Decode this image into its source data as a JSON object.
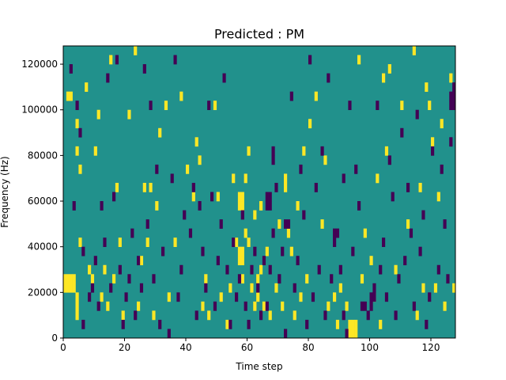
{
  "chart_data": {
    "type": "heatmap",
    "title": "Predicted : PM",
    "xlabel": "Time step",
    "ylabel": "Frequency (Hz)",
    "xlim": [
      0,
      128
    ],
    "ylim": [
      0,
      128000
    ],
    "x_ticks": [
      {
        "value": 0,
        "label": "0"
      },
      {
        "value": 20,
        "label": "20"
      },
      {
        "value": 40,
        "label": "40"
      },
      {
        "value": 60,
        "label": "60"
      },
      {
        "value": 80,
        "label": "80"
      },
      {
        "value": 100,
        "label": "100"
      },
      {
        "value": 120,
        "label": "120"
      }
    ],
    "y_ticks": [
      {
        "value": 0,
        "label": "0"
      },
      {
        "value": 20000,
        "label": "20000"
      },
      {
        "value": 40000,
        "label": "40000"
      },
      {
        "value": 60000,
        "label": "60000"
      },
      {
        "value": 80000,
        "label": "80000"
      },
      {
        "value": 100000,
        "label": "100000"
      },
      {
        "value": 120000,
        "label": "120000"
      }
    ],
    "grid": false,
    "colors": {
      "background": "#21918c",
      "high": "#fde725",
      "low": "#440154"
    },
    "value_levels": {
      "background": 0,
      "high": 1,
      "low": -1
    },
    "cell_size": {
      "time_steps": 1,
      "frequency_hz": 4000
    },
    "cells_high": [
      [
        0,
        20000
      ],
      [
        1,
        20000
      ],
      [
        2,
        20000
      ],
      [
        3,
        20000
      ],
      [
        0,
        24000
      ],
      [
        1,
        24000
      ],
      [
        2,
        24000
      ],
      [
        3,
        24000
      ],
      [
        1,
        104000
      ],
      [
        2,
        104000
      ],
      [
        4,
        16000
      ],
      [
        4,
        12000
      ],
      [
        4,
        8000
      ],
      [
        4,
        80000
      ],
      [
        4,
        92000
      ],
      [
        5,
        72000
      ],
      [
        5,
        40000
      ],
      [
        7,
        108000
      ],
      [
        8,
        28000
      ],
      [
        9,
        24000
      ],
      [
        10,
        80000
      ],
      [
        11,
        96000
      ],
      [
        12,
        16000
      ],
      [
        13,
        28000
      ],
      [
        14,
        12000
      ],
      [
        15,
        120000
      ],
      [
        16,
        24000
      ],
      [
        17,
        64000
      ],
      [
        18,
        40000
      ],
      [
        19,
        8000
      ],
      [
        21,
        96000
      ],
      [
        23,
        124000
      ],
      [
        24,
        12000
      ],
      [
        25,
        32000
      ],
      [
        26,
        64000
      ],
      [
        27,
        40000
      ],
      [
        28,
        64000
      ],
      [
        29,
        8000
      ],
      [
        30,
        56000
      ],
      [
        31,
        88000
      ],
      [
        33,
        100000
      ],
      [
        34,
        16000
      ],
      [
        36,
        40000
      ],
      [
        38,
        104000
      ],
      [
        40,
        72000
      ],
      [
        42,
        60000
      ],
      [
        43,
        84000
      ],
      [
        44,
        76000
      ],
      [
        45,
        12000
      ],
      [
        46,
        24000
      ],
      [
        47,
        8000
      ],
      [
        49,
        100000
      ],
      [
        50,
        60000
      ],
      [
        51,
        16000
      ],
      [
        53,
        4000
      ],
      [
        54,
        20000
      ],
      [
        55,
        68000
      ],
      [
        56,
        40000
      ],
      [
        57,
        32000
      ],
      [
        57,
        36000
      ],
      [
        57,
        56000
      ],
      [
        57,
        60000
      ],
      [
        58,
        32000
      ],
      [
        58,
        36000
      ],
      [
        58,
        56000
      ],
      [
        58,
        60000
      ],
      [
        58,
        24000
      ],
      [
        59,
        44000
      ],
      [
        59,
        68000
      ],
      [
        60,
        80000
      ],
      [
        60,
        40000
      ],
      [
        61,
        20000
      ],
      [
        62,
        52000
      ],
      [
        62,
        12000
      ],
      [
        63,
        16000
      ],
      [
        63,
        24000
      ],
      [
        64,
        56000
      ],
      [
        64,
        28000
      ],
      [
        65,
        12000
      ],
      [
        66,
        36000
      ],
      [
        67,
        8000
      ],
      [
        69,
        20000
      ],
      [
        70,
        48000
      ],
      [
        71,
        12000
      ],
      [
        72,
        64000
      ],
      [
        72,
        68000
      ],
      [
        73,
        44000
      ],
      [
        74,
        36000
      ],
      [
        75,
        8000
      ],
      [
        76,
        56000
      ],
      [
        77,
        16000
      ],
      [
        78,
        80000
      ],
      [
        79,
        24000
      ],
      [
        80,
        92000
      ],
      [
        82,
        104000
      ],
      [
        84,
        48000
      ],
      [
        85,
        76000
      ],
      [
        86,
        12000
      ],
      [
        88,
        16000
      ],
      [
        89,
        4000
      ],
      [
        90,
        20000
      ],
      [
        92,
        12000
      ],
      [
        93,
        0
      ],
      [
        93,
        4000
      ],
      [
        94,
        0
      ],
      [
        94,
        4000
      ],
      [
        95,
        0
      ],
      [
        95,
        4000
      ],
      [
        96,
        120000
      ],
      [
        97,
        24000
      ],
      [
        98,
        44000
      ],
      [
        100,
        32000
      ],
      [
        101,
        16000
      ],
      [
        102,
        68000
      ],
      [
        103,
        4000
      ],
      [
        104,
        112000
      ],
      [
        105,
        80000
      ],
      [
        106,
        116000
      ],
      [
        108,
        28000
      ],
      [
        110,
        100000
      ],
      [
        112,
        48000
      ],
      [
        114,
        124000
      ],
      [
        115,
        8000
      ],
      [
        116,
        64000
      ],
      [
        117,
        20000
      ],
      [
        118,
        108000
      ],
      [
        119,
        100000
      ],
      [
        120,
        84000
      ],
      [
        121,
        20000
      ],
      [
        122,
        60000
      ],
      [
        123,
        92000
      ],
      [
        124,
        12000
      ],
      [
        126,
        112000
      ],
      [
        127,
        20000
      ]
    ],
    "cells_low": [
      [
        2,
        116000
      ],
      [
        3,
        56000
      ],
      [
        4,
        100000
      ],
      [
        5,
        88000
      ],
      [
        6,
        36000
      ],
      [
        6,
        4000
      ],
      [
        8,
        16000
      ],
      [
        9,
        20000
      ],
      [
        10,
        32000
      ],
      [
        11,
        12000
      ],
      [
        12,
        56000
      ],
      [
        13,
        40000
      ],
      [
        14,
        112000
      ],
      [
        15,
        20000
      ],
      [
        16,
        60000
      ],
      [
        17,
        120000
      ],
      [
        18,
        28000
      ],
      [
        19,
        4000
      ],
      [
        20,
        16000
      ],
      [
        21,
        24000
      ],
      [
        22,
        44000
      ],
      [
        23,
        8000
      ],
      [
        24,
        32000
      ],
      [
        25,
        20000
      ],
      [
        26,
        116000
      ],
      [
        27,
        48000
      ],
      [
        28,
        100000
      ],
      [
        29,
        24000
      ],
      [
        30,
        72000
      ],
      [
        31,
        4000
      ],
      [
        32,
        36000
      ],
      [
        34,
        0
      ],
      [
        35,
        68000
      ],
      [
        36,
        120000
      ],
      [
        37,
        16000
      ],
      [
        38,
        28000
      ],
      [
        39,
        52000
      ],
      [
        41,
        44000
      ],
      [
        42,
        64000
      ],
      [
        43,
        8000
      ],
      [
        44,
        56000
      ],
      [
        45,
        36000
      ],
      [
        46,
        20000
      ],
      [
        47,
        100000
      ],
      [
        48,
        60000
      ],
      [
        49,
        12000
      ],
      [
        50,
        32000
      ],
      [
        51,
        48000
      ],
      [
        52,
        112000
      ],
      [
        53,
        28000
      ],
      [
        54,
        4000
      ],
      [
        55,
        40000
      ],
      [
        56,
        16000
      ],
      [
        57,
        24000
      ],
      [
        58,
        52000
      ],
      [
        59,
        12000
      ],
      [
        60,
        4000
      ],
      [
        61,
        28000
      ],
      [
        62,
        36000
      ],
      [
        63,
        20000
      ],
      [
        64,
        8000
      ],
      [
        65,
        32000
      ],
      [
        66,
        56000
      ],
      [
        66,
        60000
      ],
      [
        67,
        56000
      ],
      [
        67,
        60000
      ],
      [
        66,
        12000
      ],
      [
        67,
        28000
      ],
      [
        68,
        80000
      ],
      [
        68,
        76000
      ],
      [
        68,
        44000
      ],
      [
        69,
        64000
      ],
      [
        70,
        24000
      ],
      [
        71,
        36000
      ],
      [
        72,
        0
      ],
      [
        72,
        48000
      ],
      [
        73,
        48000
      ],
      [
        74,
        104000
      ],
      [
        75,
        20000
      ],
      [
        76,
        32000
      ],
      [
        77,
        72000
      ],
      [
        78,
        52000
      ],
      [
        79,
        4000
      ],
      [
        80,
        120000
      ],
      [
        81,
        16000
      ],
      [
        82,
        64000
      ],
      [
        83,
        28000
      ],
      [
        84,
        80000
      ],
      [
        85,
        8000
      ],
      [
        86,
        112000
      ],
      [
        87,
        24000
      ],
      [
        88,
        40000
      ],
      [
        88,
        44000
      ],
      [
        89,
        44000
      ],
      [
        90,
        28000
      ],
      [
        91,
        68000
      ],
      [
        91,
        8000
      ],
      [
        92,
        0
      ],
      [
        93,
        100000
      ],
      [
        94,
        36000
      ],
      [
        95,
        72000
      ],
      [
        96,
        56000
      ],
      [
        97,
        12000
      ],
      [
        98,
        12000
      ],
      [
        99,
        8000
      ],
      [
        100,
        12000
      ],
      [
        100,
        16000
      ],
      [
        101,
        16000
      ],
      [
        101,
        20000
      ],
      [
        102,
        100000
      ],
      [
        103,
        28000
      ],
      [
        104,
        40000
      ],
      [
        105,
        16000
      ],
      [
        106,
        76000
      ],
      [
        107,
        60000
      ],
      [
        108,
        8000
      ],
      [
        109,
        24000
      ],
      [
        110,
        88000
      ],
      [
        111,
        32000
      ],
      [
        112,
        64000
      ],
      [
        113,
        44000
      ],
      [
        114,
        12000
      ],
      [
        115,
        96000
      ],
      [
        116,
        36000
      ],
      [
        117,
        52000
      ],
      [
        118,
        4000
      ],
      [
        119,
        16000
      ],
      [
        120,
        80000
      ],
      [
        122,
        28000
      ],
      [
        123,
        72000
      ],
      [
        124,
        48000
      ],
      [
        125,
        24000
      ],
      [
        126,
        84000
      ],
      [
        126,
        100000
      ],
      [
        127,
        100000
      ],
      [
        126,
        104000
      ],
      [
        127,
        104000
      ],
      [
        127,
        108000
      ]
    ]
  }
}
